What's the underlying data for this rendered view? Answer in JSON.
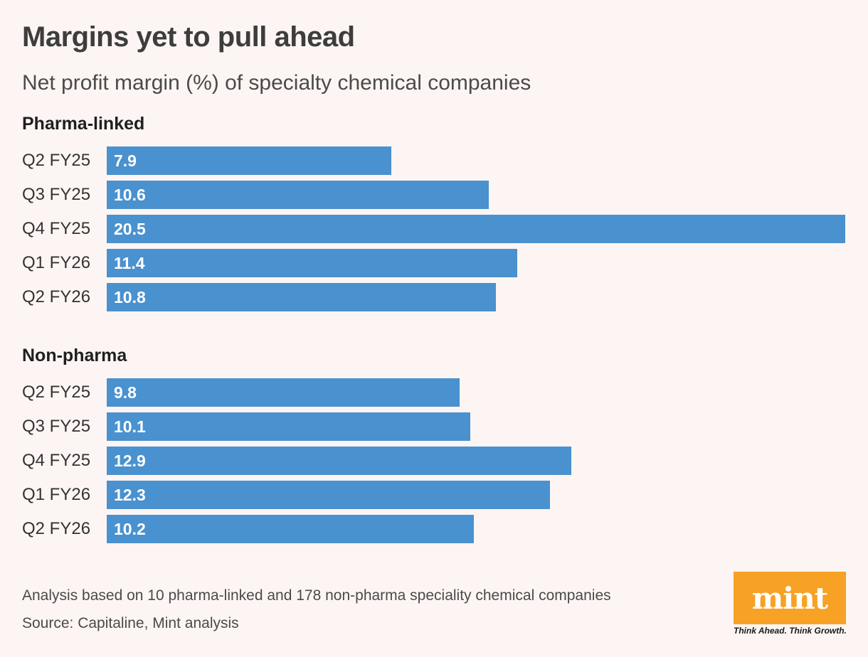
{
  "header": {
    "title": "Margins yet to pull ahead",
    "subtitle": "Net profit margin (%) of specialty chemical companies"
  },
  "chart_data": {
    "type": "bar",
    "orientation": "horizontal",
    "title": "Margins yet to pull ahead",
    "subtitle": "Net profit margin (%) of specialty chemical companies",
    "bar_color": "#4a91cf",
    "groups": [
      {
        "name": "Pharma-linked",
        "categories": [
          "Q2 FY25",
          "Q3 FY25",
          "Q4 FY25",
          "Q1 FY26",
          "Q2 FY26"
        ],
        "values": [
          7.9,
          10.6,
          20.5,
          11.4,
          10.8
        ],
        "value_labels": [
          "7.9",
          "10.6",
          "20.5",
          "11.4",
          "10.8"
        ]
      },
      {
        "name": "Non-pharma",
        "categories": [
          "Q2 FY25",
          "Q3 FY25",
          "Q4 FY25",
          "Q1 FY26",
          "Q2 FY26"
        ],
        "values": [
          9.8,
          10.1,
          12.9,
          12.3,
          10.2
        ],
        "value_labels": [
          "9.8",
          "10.1",
          "12.9",
          "12.3",
          "10.2"
        ]
      }
    ]
  },
  "footer": {
    "note": "Analysis based on 10 pharma-linked and 178 non-pharma speciality chemical companies",
    "source": "Source: Capitaline, Mint analysis"
  },
  "logo": {
    "text": "mint",
    "tagline": "Think Ahead. Think Growth.",
    "color": "#f7a224"
  }
}
